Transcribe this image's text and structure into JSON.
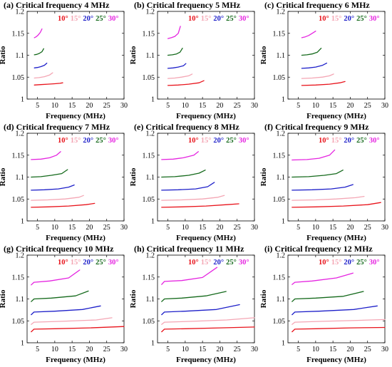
{
  "figure": {
    "colors": {
      "10°": "#e8131b",
      "15°": "#f4a6b4",
      "20°": "#1d1fc9",
      "25°": "#14691b",
      "30°": "#e524e0"
    }
  },
  "chart_data": [
    {
      "type": "line",
      "title": "(a) Critical frequency 4 MHz",
      "xlabel": "Frequency (MHz)",
      "ylabel": "Ratio",
      "xlim": [
        2,
        30
      ],
      "ylim": [
        1,
        1.2
      ],
      "xticks": [
        "5",
        "10",
        "15",
        "20",
        "25",
        "30"
      ],
      "yticks": [
        "1",
        "1.05",
        "1.1",
        "1.15",
        "1.2"
      ],
      "legend": [
        "10°",
        "15°",
        "20°",
        "25°",
        "30°"
      ],
      "series": [
        {
          "name": "10°",
          "color": "#e8131b",
          "x": [
            4.1,
            6,
            8,
            10,
            11.5,
            12.3
          ],
          "y": [
            1.032,
            1.033,
            1.034,
            1.035,
            1.036,
            1.037
          ]
        },
        {
          "name": "15°",
          "color": "#f4a6b4",
          "x": [
            4.1,
            5.5,
            7,
            8.5,
            9.4
          ],
          "y": [
            1.048,
            1.049,
            1.051,
            1.055,
            1.06
          ]
        },
        {
          "name": "20°",
          "color": "#1d1fc9",
          "x": [
            4.1,
            5,
            6,
            7,
            7.7
          ],
          "y": [
            1.071,
            1.072,
            1.074,
            1.077,
            1.082
          ]
        },
        {
          "name": "25°",
          "color": "#14691b",
          "x": [
            4.1,
            4.8,
            5.5,
            6.3,
            6.8
          ],
          "y": [
            1.101,
            1.102,
            1.104,
            1.108,
            1.115
          ]
        },
        {
          "name": "30°",
          "color": "#e524e0",
          "x": [
            4.1,
            4.6,
            5.2,
            5.8,
            6.3
          ],
          "y": [
            1.14,
            1.142,
            1.146,
            1.152,
            1.16
          ]
        }
      ]
    },
    {
      "type": "line",
      "title": "(b) Critical frequency 5 MHz",
      "xlabel": "Frequency (MHz)",
      "ylabel": "Ratio",
      "xlim": [
        2,
        30
      ],
      "ylim": [
        1,
        1.2
      ],
      "xticks": [
        "5",
        "10",
        "15",
        "20",
        "25",
        "30"
      ],
      "yticks": [
        "1",
        "1.05",
        "1.1",
        "1.15",
        "1.2"
      ],
      "legend": [
        "10°",
        "15°",
        "20°",
        "25°",
        "30°"
      ],
      "series": [
        {
          "name": "10°",
          "color": "#e8131b",
          "x": [
            5,
            8,
            11,
            14,
            15.4
          ],
          "y": [
            1.031,
            1.032,
            1.034,
            1.037,
            1.042
          ]
        },
        {
          "name": "15°",
          "color": "#f4a6b4",
          "x": [
            5,
            7,
            9,
            11,
            12
          ],
          "y": [
            1.047,
            1.048,
            1.05,
            1.053,
            1.057
          ]
        },
        {
          "name": "20°",
          "color": "#1d1fc9",
          "x": [
            5,
            6.5,
            8,
            9.5,
            10.2
          ],
          "y": [
            1.07,
            1.071,
            1.073,
            1.076,
            1.081
          ]
        },
        {
          "name": "25°",
          "color": "#14691b",
          "x": [
            5,
            6.3,
            7.5,
            8.5,
            9.2
          ],
          "y": [
            1.1,
            1.101,
            1.103,
            1.107,
            1.116
          ]
        },
        {
          "name": "30°",
          "color": "#e524e0",
          "x": [
            5,
            6,
            7,
            8,
            8.6
          ],
          "y": [
            1.138,
            1.14,
            1.143,
            1.15,
            1.166
          ]
        }
      ]
    },
    {
      "type": "line",
      "title": "(c) Critical frequency 6 MHz",
      "xlabel": "Frequency (MHz)",
      "ylabel": "Ratio",
      "xlim": [
        2,
        30
      ],
      "ylim": [
        1,
        1.2
      ],
      "xticks": [
        "5",
        "10",
        "15",
        "20",
        "25",
        "30"
      ],
      "yticks": [
        "1",
        "1.05",
        "1.1",
        "1.15",
        "1.2"
      ],
      "legend": [
        "10°",
        "15°",
        "20°",
        "25°",
        "30°"
      ],
      "series": [
        {
          "name": "10°",
          "color": "#e8131b",
          "x": [
            6,
            10,
            14,
            17,
            18.5
          ],
          "y": [
            1.031,
            1.032,
            1.034,
            1.037,
            1.04
          ]
        },
        {
          "name": "15°",
          "color": "#f4a6b4",
          "x": [
            6,
            9,
            12,
            14,
            15.2
          ],
          "y": [
            1.047,
            1.048,
            1.05,
            1.053,
            1.057
          ]
        },
        {
          "name": "20°",
          "color": "#1d1fc9",
          "x": [
            6,
            8,
            10,
            12,
            13.2
          ],
          "y": [
            1.07,
            1.071,
            1.073,
            1.077,
            1.082
          ]
        },
        {
          "name": "25°",
          "color": "#14691b",
          "x": [
            6,
            7.5,
            9,
            10.5,
            11.6
          ],
          "y": [
            1.1,
            1.101,
            1.103,
            1.107,
            1.116
          ]
        },
        {
          "name": "30°",
          "color": "#e524e0",
          "x": [
            6,
            7,
            8,
            9,
            10
          ],
          "y": [
            1.14,
            1.142,
            1.145,
            1.15,
            1.155
          ]
        }
      ]
    },
    {
      "type": "line",
      "title": "(d) Critical frequency 7 MHz",
      "xlabel": "Frequency (MHz)",
      "ylabel": "Ratio",
      "xlim": [
        2,
        30
      ],
      "ylim": [
        1,
        1.2
      ],
      "xticks": [
        "5",
        "10",
        "15",
        "20",
        "25",
        "30"
      ],
      "yticks": [
        "1",
        "1.05",
        "1.1",
        "1.15",
        "1.2"
      ],
      "legend": [
        "10°",
        "15°",
        "20°",
        "25°",
        "30°"
      ],
      "series": [
        {
          "name": "10°",
          "color": "#e8131b",
          "x": [
            3.2,
            8,
            14,
            19,
            21.5
          ],
          "y": [
            1.031,
            1.032,
            1.034,
            1.037,
            1.04
          ]
        },
        {
          "name": "15°",
          "color": "#f4a6b4",
          "x": [
            3.2,
            8,
            13,
            17,
            18.3
          ],
          "y": [
            1.047,
            1.048,
            1.05,
            1.054,
            1.058
          ]
        },
        {
          "name": "20°",
          "color": "#1d1fc9",
          "x": [
            3.2,
            7,
            11,
            14,
            15.6
          ],
          "y": [
            1.07,
            1.071,
            1.073,
            1.077,
            1.082
          ]
        },
        {
          "name": "25°",
          "color": "#14691b",
          "x": [
            3.2,
            6,
            9,
            12,
            13.7
          ],
          "y": [
            1.1,
            1.101,
            1.104,
            1.108,
            1.117
          ]
        },
        {
          "name": "30°",
          "color": "#e524e0",
          "x": [
            3.2,
            6,
            8.5,
            10.5,
            11.7
          ],
          "y": [
            1.14,
            1.141,
            1.144,
            1.15,
            1.158
          ]
        }
      ]
    },
    {
      "type": "line",
      "title": "(e) Critical frequency 8 MHz",
      "xlabel": "Frequency (MHz)",
      "ylabel": "Ratio",
      "xlim": [
        2,
        30
      ],
      "ylim": [
        1,
        1.2
      ],
      "xticks": [
        "5",
        "10",
        "15",
        "20",
        "25",
        "30"
      ],
      "yticks": [
        "1",
        "1.05",
        "1.1",
        "1.15",
        "1.2"
      ],
      "legend": [
        "10°",
        "15°",
        "20°",
        "25°",
        "30°"
      ],
      "series": [
        {
          "name": "10°",
          "color": "#e8131b",
          "x": [
            3.2,
            9,
            16,
            22,
            25.5
          ],
          "y": [
            1.031,
            1.032,
            1.034,
            1.037,
            1.039
          ]
        },
        {
          "name": "15°",
          "color": "#f4a6b4",
          "x": [
            3.2,
            9,
            15,
            19.5,
            21.3
          ],
          "y": [
            1.047,
            1.048,
            1.05,
            1.054,
            1.058
          ]
        },
        {
          "name": "20°",
          "color": "#1d1fc9",
          "x": [
            3.2,
            8,
            13,
            16.5,
            18.4
          ],
          "y": [
            1.07,
            1.071,
            1.073,
            1.078,
            1.088
          ]
        },
        {
          "name": "25°",
          "color": "#14691b",
          "x": [
            3.2,
            7,
            11,
            14,
            15.8
          ],
          "y": [
            1.1,
            1.101,
            1.104,
            1.109,
            1.116
          ]
        },
        {
          "name": "30°",
          "color": "#e524e0",
          "x": [
            3.2,
            6.5,
            9.5,
            12.5,
            13.8
          ],
          "y": [
            1.14,
            1.141,
            1.144,
            1.15,
            1.158
          ]
        }
      ]
    },
    {
      "type": "line",
      "title": "(f) Critical frequency 9 MHz",
      "xlabel": "Frequency (MHz)",
      "ylabel": "Ratio",
      "xlim": [
        2,
        30
      ],
      "ylim": [
        1,
        1.2
      ],
      "xticks": [
        "5",
        "10",
        "15",
        "20",
        "25",
        "30"
      ],
      "yticks": [
        "1",
        "1.05",
        "1.1",
        "1.15",
        "1.2"
      ],
      "legend": [
        "10°",
        "15°",
        "20°",
        "25°",
        "30°"
      ],
      "series": [
        {
          "name": "10°",
          "color": "#e8131b",
          "x": [
            3.2,
            10,
            18,
            25,
            28.8
          ],
          "y": [
            1.031,
            1.032,
            1.034,
            1.037,
            1.042
          ]
        },
        {
          "name": "15°",
          "color": "#f4a6b4",
          "x": [
            3.2,
            10,
            16,
            21.5,
            24
          ],
          "y": [
            1.047,
            1.048,
            1.05,
            1.053,
            1.056
          ]
        },
        {
          "name": "20°",
          "color": "#1d1fc9",
          "x": [
            3.2,
            9,
            14.5,
            18.5,
            20.8
          ],
          "y": [
            1.07,
            1.071,
            1.073,
            1.077,
            1.083
          ]
        },
        {
          "name": "25°",
          "color": "#14691b",
          "x": [
            3.2,
            8,
            12.5,
            16,
            17.9
          ],
          "y": [
            1.1,
            1.101,
            1.104,
            1.108,
            1.116
          ]
        },
        {
          "name": "30°",
          "color": "#e524e0",
          "x": [
            3.2,
            7.5,
            11,
            14,
            15.5
          ],
          "y": [
            1.139,
            1.14,
            1.143,
            1.15,
            1.162
          ]
        }
      ]
    },
    {
      "type": "line",
      "title": "(g) Critical frequency 10 MHz",
      "xlabel": "Frequency (MHz)",
      "ylabel": "Ratio",
      "xlim": [
        2,
        30
      ],
      "ylim": [
        1,
        1.2
      ],
      "xticks": [
        "5",
        "10",
        "15",
        "20",
        "25",
        "30"
      ],
      "yticks": [
        "1",
        "1.05",
        "1.1",
        "1.15",
        "1.2"
      ],
      "legend": [
        "10°",
        "15°",
        "20°",
        "25°",
        "30°"
      ],
      "series": [
        {
          "name": "10°",
          "color": "#e8131b",
          "x": [
            3.2,
            4,
            10,
            20,
            30
          ],
          "y": [
            1.025,
            1.031,
            1.032,
            1.034,
            1.037
          ]
        },
        {
          "name": "15°",
          "color": "#f4a6b4",
          "x": [
            3.2,
            4,
            12,
            22,
            26.5
          ],
          "y": [
            1.042,
            1.047,
            1.049,
            1.052,
            1.057
          ]
        },
        {
          "name": "20°",
          "color": "#1d1fc9",
          "x": [
            3.2,
            4,
            10,
            18,
            23.2
          ],
          "y": [
            1.064,
            1.07,
            1.072,
            1.076,
            1.084
          ]
        },
        {
          "name": "25°",
          "color": "#14691b",
          "x": [
            3.2,
            4,
            9,
            16,
            19.7
          ],
          "y": [
            1.094,
            1.1,
            1.102,
            1.107,
            1.118
          ]
        },
        {
          "name": "30°",
          "color": "#e524e0",
          "x": [
            3.2,
            4,
            8.5,
            14,
            17.2
          ],
          "y": [
            1.132,
            1.138,
            1.141,
            1.148,
            1.166
          ]
        }
      ]
    },
    {
      "type": "line",
      "title": "(h) Critical frequency 11 MHz",
      "xlabel": "Frequency (MHz)",
      "ylabel": "Ratio",
      "xlim": [
        2,
        30
      ],
      "ylim": [
        1,
        1.2
      ],
      "xticks": [
        "5",
        "10",
        "15",
        "20",
        "25",
        "30"
      ],
      "yticks": [
        "1",
        "1.05",
        "1.1",
        "1.15",
        "1.2"
      ],
      "legend": [
        "10°",
        "15°",
        "20°",
        "25°",
        "30°"
      ],
      "series": [
        {
          "name": "10°",
          "color": "#e8131b",
          "x": [
            3.2,
            4,
            10,
            20,
            30
          ],
          "y": [
            1.025,
            1.031,
            1.032,
            1.034,
            1.036
          ]
        },
        {
          "name": "15°",
          "color": "#f4a6b4",
          "x": [
            3.2,
            4,
            12,
            22,
            30
          ],
          "y": [
            1.042,
            1.047,
            1.049,
            1.052,
            1.057
          ]
        },
        {
          "name": "20°",
          "color": "#1d1fc9",
          "x": [
            3.2,
            4,
            10,
            19,
            25.7
          ],
          "y": [
            1.064,
            1.07,
            1.072,
            1.076,
            1.087
          ]
        },
        {
          "name": "25°",
          "color": "#14691b",
          "x": [
            3.2,
            4,
            9,
            16,
            21.8
          ],
          "y": [
            1.094,
            1.1,
            1.102,
            1.107,
            1.117
          ]
        },
        {
          "name": "30°",
          "color": "#e524e0",
          "x": [
            3.2,
            4,
            9,
            15,
            19.2
          ],
          "y": [
            1.133,
            1.14,
            1.142,
            1.149,
            1.172
          ]
        }
      ]
    },
    {
      "type": "line",
      "title": "(i) Critical frequency 12 MHz",
      "xlabel": "Frequency (MHz)",
      "ylabel": "Ratio",
      "xlim": [
        2,
        30
      ],
      "ylim": [
        1,
        1.2
      ],
      "xticks": [
        "5",
        "10",
        "15",
        "20",
        "25",
        "30"
      ],
      "yticks": [
        "1",
        "1.05",
        "1.1",
        "1.15",
        "1.2"
      ],
      "legend": [
        "10°",
        "15°",
        "20°",
        "25°",
        "30°"
      ],
      "series": [
        {
          "name": "10°",
          "color": "#e8131b",
          "x": [
            3.2,
            4,
            10,
            20,
            30
          ],
          "y": [
            1.025,
            1.031,
            1.032,
            1.034,
            1.035
          ]
        },
        {
          "name": "15°",
          "color": "#f4a6b4",
          "x": [
            3.2,
            4,
            12,
            22,
            30
          ],
          "y": [
            1.042,
            1.047,
            1.049,
            1.051,
            1.053
          ]
        },
        {
          "name": "20°",
          "color": "#1d1fc9",
          "x": [
            3.2,
            4,
            11,
            21,
            27.8
          ],
          "y": [
            1.064,
            1.07,
            1.072,
            1.076,
            1.084
          ]
        },
        {
          "name": "25°",
          "color": "#14691b",
          "x": [
            3.2,
            4,
            10,
            18,
            23.8
          ],
          "y": [
            1.094,
            1.1,
            1.102,
            1.106,
            1.117
          ]
        },
        {
          "name": "30°",
          "color": "#e524e0",
          "x": [
            3.2,
            4,
            9,
            16,
            20.8
          ],
          "y": [
            1.133,
            1.138,
            1.141,
            1.148,
            1.159
          ]
        }
      ]
    }
  ]
}
